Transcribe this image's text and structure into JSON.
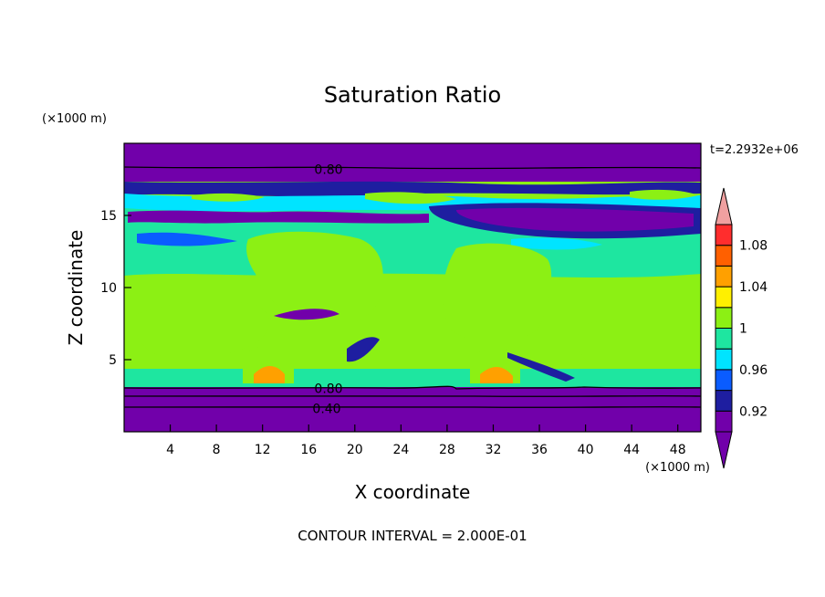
{
  "chart_data": {
    "type": "heatmap",
    "title": "Saturation Ratio",
    "xlabel": "X coordinate",
    "ylabel": "Z coordinate",
    "x_unit": "(×1000 m)",
    "y_unit": "(×1000 m)",
    "time_label": "t=2.2932e+06",
    "footer": "CONTOUR INTERVAL = 2.000E-01",
    "xlim": [
      0,
      50
    ],
    "ylim": [
      0,
      20
    ],
    "x_ticks": [
      4,
      8,
      12,
      16,
      20,
      24,
      28,
      32,
      36,
      40,
      44,
      48
    ],
    "x_tick_labels": [
      "4",
      "8",
      "12",
      "16",
      "20",
      "24",
      "28",
      "32",
      "36",
      "40",
      "44",
      "48"
    ],
    "y_ticks": [
      5,
      10,
      15
    ],
    "y_tick_labels": [
      "5",
      "10",
      "15"
    ],
    "colorbar": {
      "levels": [
        0.9,
        0.92,
        0.94,
        0.96,
        0.98,
        1.0,
        1.02,
        1.04,
        1.06,
        1.08,
        1.1
      ],
      "labels": [
        "0.92",
        "0.96",
        "1",
        "1.04",
        "1.08"
      ],
      "colors": [
        "#7100aa",
        "#1e1ea0",
        "#0a5cff",
        "#00e4ff",
        "#1ee6a0",
        "#8cf014",
        "#fff000",
        "#ffa000",
        "#ff6000",
        "#ff2d2d",
        "#f0a0a0"
      ],
      "extend": "both"
    },
    "contour_lines": [
      {
        "level": "0.80",
        "z": 18.2
      },
      {
        "level": "0.80",
        "z": 3.0
      },
      {
        "level": "0.40",
        "z": 1.6
      }
    ],
    "bands": [
      {
        "z0": 0.0,
        "z1": 3.2,
        "value": "<0.90"
      },
      {
        "z0": 3.2,
        "z1": 8.0,
        "value": "0.98-1.00"
      },
      {
        "z0": 8.0,
        "z1": 13.0,
        "value": "0.98-1.00"
      },
      {
        "z0": 13.0,
        "z1": 16.5,
        "value": "0.94-0.98"
      },
      {
        "z0": 16.5,
        "z1": 20.0,
        "value": "<0.90"
      }
    ]
  }
}
